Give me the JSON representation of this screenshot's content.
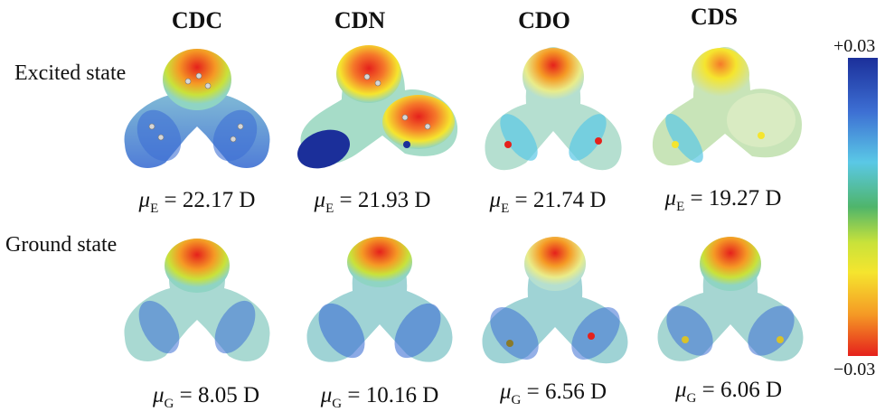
{
  "columns": [
    "CDC",
    "CDN",
    "CDO",
    "CDS"
  ],
  "rows": {
    "excited": {
      "label": "Excited state",
      "symbol": "μ",
      "subscript": "E",
      "values": [
        "= 22.17 D",
        "= 21.93 D",
        "= 21.74 D",
        "= 19.27 D"
      ]
    },
    "ground": {
      "label": "Ground state",
      "symbol": "μ",
      "subscript": "G",
      "values": [
        "= 8.05 D",
        "= 10.16 D",
        "= 6.56 D",
        "= 6.06 D"
      ]
    }
  },
  "colorbar": {
    "max_label": "+0.03",
    "min_label": "−0.03",
    "colors": [
      "#1b2f9a",
      "#5ac8e6",
      "#4fb56b",
      "#f5e52e",
      "#e5211c"
    ]
  }
}
